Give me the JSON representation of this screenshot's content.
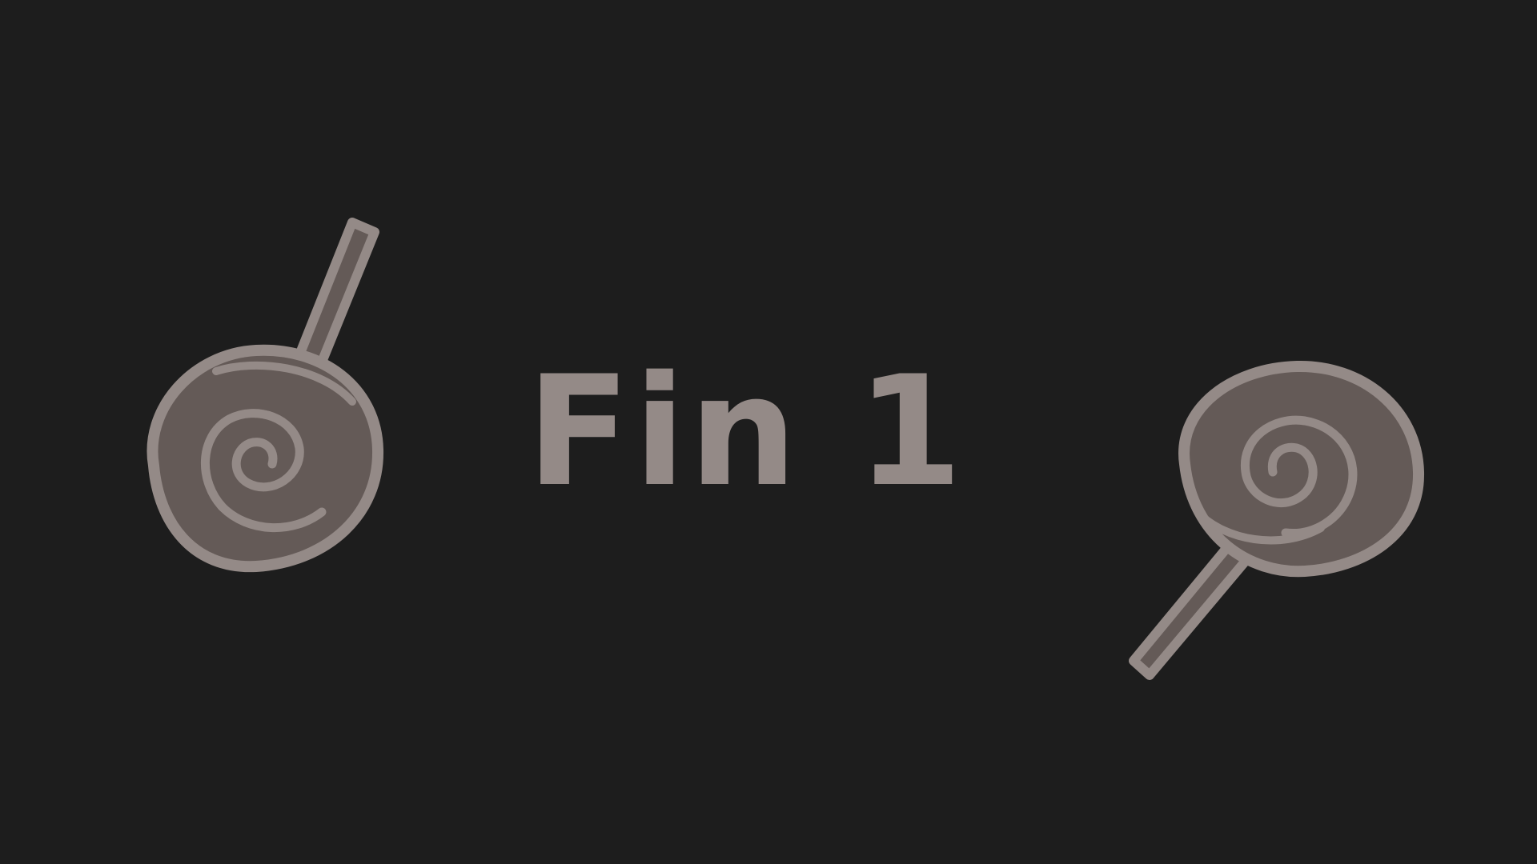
{
  "ending": {
    "title": "Fin 1"
  },
  "colors": {
    "background": "#1d1d1d",
    "title": "#948a87",
    "candy_outline": "#948a87",
    "candy_fill": "#645a57"
  },
  "icons": {
    "left": "lollipop-icon",
    "right": "lollipop-icon"
  }
}
